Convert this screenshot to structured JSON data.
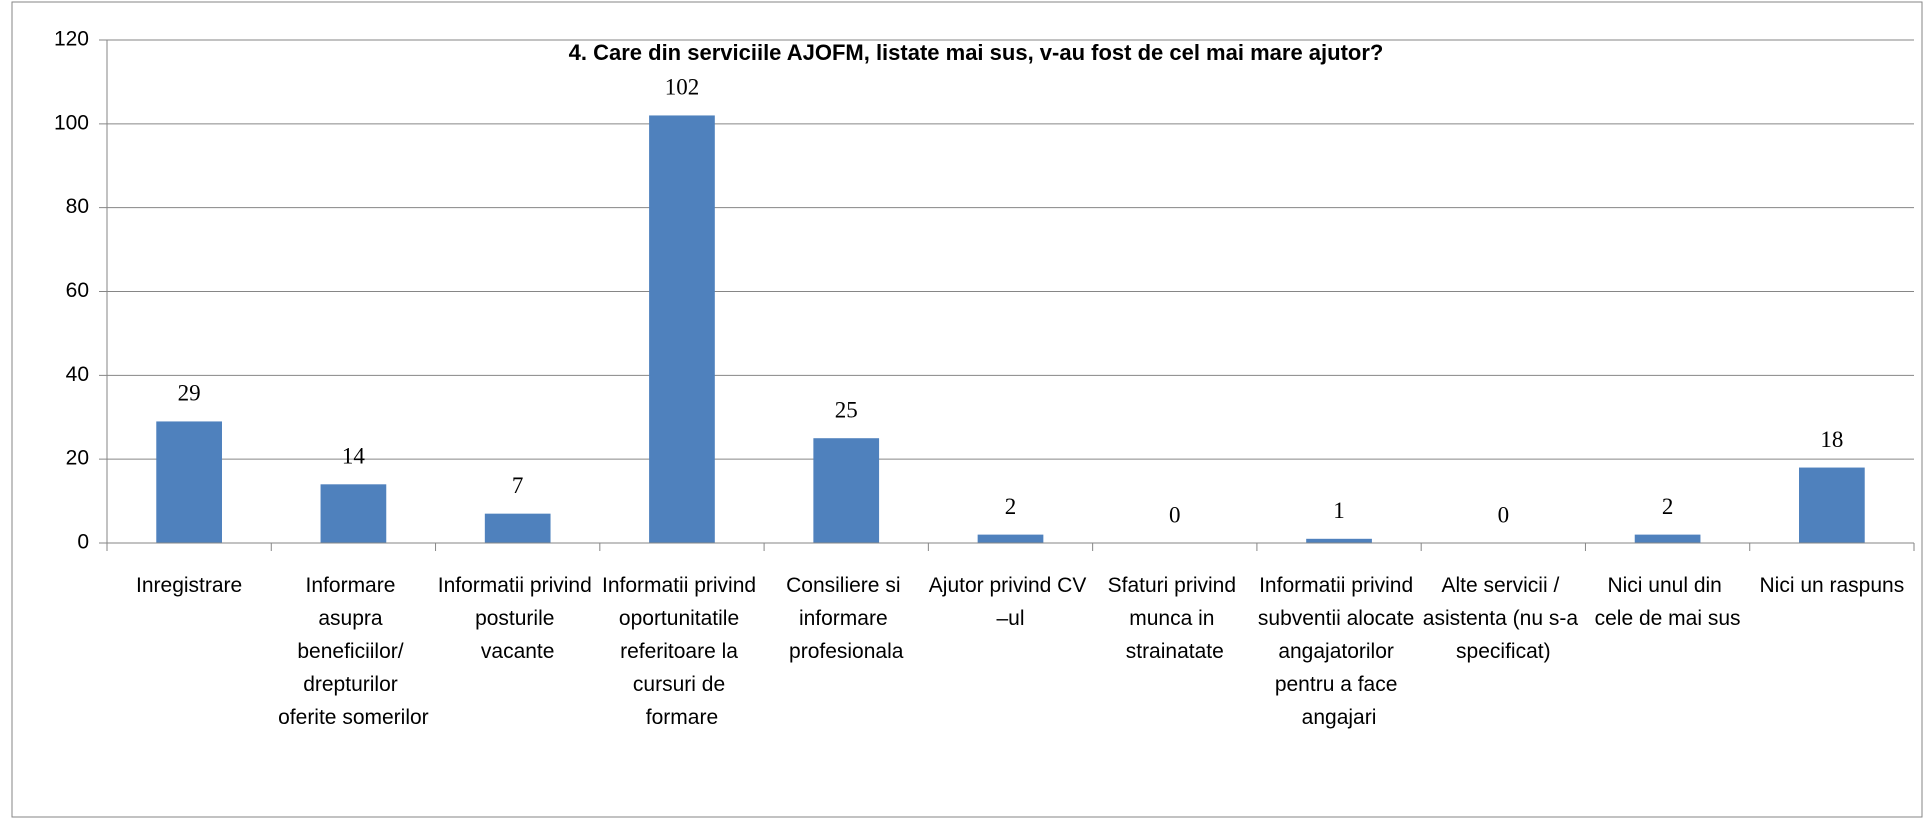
{
  "chart_data": {
    "type": "bar",
    "title": "4. Care din serviciile AJOFM, listate mai sus, v-au fost de cel mai mare ajutor?",
    "categories": [
      "Inregistrare",
      "Informare asupra beneficiilor/ drepturilor oferite somerilor",
      "Informatii privind posturile vacante",
      "Informatii privind oportunitatile referitoare la cursuri de formare",
      "Consiliere si informare profesionala",
      "Ajutor privind CV –ul",
      "Sfaturi privind munca in strainatate",
      "Informatii privind subventii alocate angajatorilor pentru a face angajari",
      "Alte servicii / asistenta (nu s-a specificat)",
      "Nici unul din cele de mai sus",
      "Nici un raspuns"
    ],
    "values": [
      29,
      14,
      7,
      102,
      25,
      2,
      0,
      1,
      0,
      2,
      18
    ],
    "color": "#4f81bd",
    "ylim": [
      0,
      120
    ],
    "yticks": [
      0,
      20,
      40,
      60,
      80,
      100,
      120
    ],
    "grid": true
  }
}
